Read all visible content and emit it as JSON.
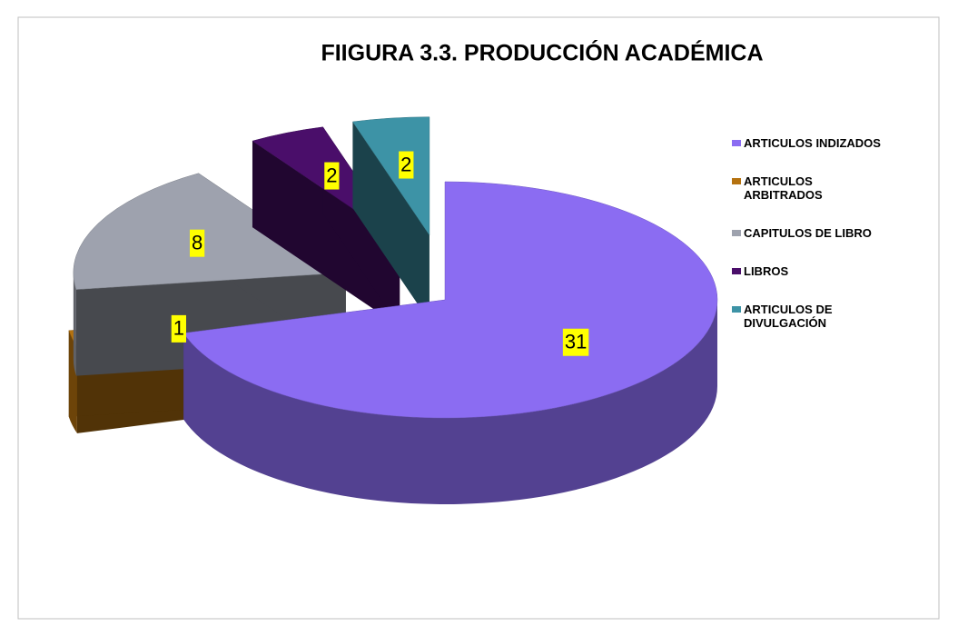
{
  "chart_data": {
    "type": "pie3d",
    "title": "FIIGURA 3.3. PRODUCCIÓN ACADÉMICA",
    "categories": [
      "ARTICULOS INDIZADOS",
      "ARTICULOS ARBITRADOS",
      "CAPITULOS DE LIBRO",
      "LIBROS",
      "ARTICULOS DE DIVULGACIÓN"
    ],
    "values": [
      31,
      1,
      8,
      2,
      2
    ],
    "colors": [
      "#8b6cf2",
      "#b5720f",
      "#9ea2ae",
      "#4a0e6a",
      "#3d93a6"
    ],
    "legend": "right"
  }
}
